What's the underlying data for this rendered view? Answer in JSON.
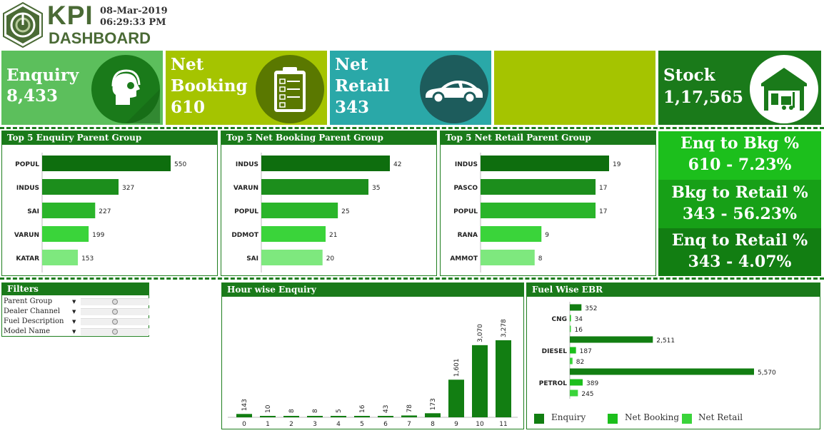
{
  "header": {
    "logo_text": "KPI",
    "logo_subtext": "DASHBOARD",
    "date": "08-Mar-2019",
    "time": "06:29:33 PM"
  },
  "tiles": [
    {
      "id": "enquiry",
      "label_lines": [
        "Enquiry"
      ],
      "value": "8,433",
      "color": "#5cbf5c",
      "icon": "headset-agent-icon"
    },
    {
      "id": "booking",
      "label_lines": [
        "Net",
        "Booking"
      ],
      "value": "610",
      "color": "#a5c400",
      "icon": "clipboard-checklist-icon"
    },
    {
      "id": "retail",
      "label_lines": [
        "Net",
        "Retail"
      ],
      "value": "343",
      "color": "#2aa8a8",
      "icon": "car-icon"
    },
    {
      "id": "blank",
      "label_lines": [],
      "value": "",
      "color": "#a5c400",
      "icon": ""
    },
    {
      "id": "stock",
      "label_lines": [
        "Stock"
      ],
      "value": "1,17,565",
      "color": "#1a7a1a",
      "icon": "warehouse-forklift-icon"
    }
  ],
  "ratios": [
    {
      "line1": "Enq to Bkg %",
      "line2": "610 - 7.23%",
      "color": "#1cbf1c"
    },
    {
      "line1": "Bkg to Retail %",
      "line2": "343 - 56.23%",
      "color": "#17a017"
    },
    {
      "line1": "Enq to Retail %",
      "line2": "343 - 4.07%",
      "color": "#127e12"
    }
  ],
  "filters": {
    "title": "Filters",
    "items": [
      "Parent Group",
      "Dealer Channel",
      "Fuel Description",
      "Model Name"
    ]
  },
  "legend": [
    "Enquiry",
    "Net Booking",
    "Net Retail"
  ],
  "chart_data": [
    {
      "type": "bar",
      "orientation": "horizontal",
      "title": "Top 5 Enquiry Parent Group",
      "categories": [
        "POPUL",
        "INDUS",
        "SAI",
        "VARUN",
        "KATAR"
      ],
      "values": [
        550,
        327,
        227,
        199,
        153
      ],
      "value_labels": [
        "550",
        "327",
        "227",
        "199",
        "153"
      ],
      "colors": [
        "#0e6e0e",
        "#1c8e1c",
        "#2ab52a",
        "#3ad43a",
        "#7ee87e"
      ]
    },
    {
      "type": "bar",
      "orientation": "horizontal",
      "title": "Top 5 Net Booking Parent Group",
      "categories": [
        "INDUS",
        "VARUN",
        "POPUL",
        "DDMOT",
        "SAI"
      ],
      "values": [
        42,
        35,
        25,
        21,
        20
      ],
      "value_labels": [
        "42",
        "35",
        "25",
        "21",
        "20"
      ],
      "colors": [
        "#0e6e0e",
        "#1c8e1c",
        "#2ab52a",
        "#3ad43a",
        "#7ee87e"
      ]
    },
    {
      "type": "bar",
      "orientation": "horizontal",
      "title": "Top 5 Net Retail Parent Group",
      "categories": [
        "INDUS",
        "PASCO",
        "POPUL",
        "RANA",
        "AMMOT"
      ],
      "values": [
        19,
        17,
        17,
        9,
        8
      ],
      "value_labels": [
        "19",
        "17",
        "17",
        "9",
        "8"
      ],
      "colors": [
        "#0e6e0e",
        "#1c8e1c",
        "#2ab52a",
        "#3ad43a",
        "#7ee87e"
      ]
    },
    {
      "type": "bar",
      "orientation": "vertical",
      "title": "Hour wise Enquiry",
      "categories": [
        "0",
        "1",
        "2",
        "3",
        "4",
        "5",
        "6",
        "7",
        "8",
        "9",
        "10",
        "11"
      ],
      "values": [
        143,
        10,
        8,
        8,
        5,
        16,
        43,
        78,
        173,
        1601,
        3070,
        3278
      ],
      "value_labels": [
        "143",
        "10",
        "8",
        "8",
        "5",
        "16",
        "43",
        "78",
        "173",
        "1,601",
        "3,070",
        "3,278"
      ],
      "color": "#127e12"
    },
    {
      "type": "bar",
      "orientation": "horizontal",
      "title": "Fuel Wise EBR",
      "categories": [
        "CNG",
        "DIESEL",
        "PETROL"
      ],
      "series": [
        {
          "name": "Enquiry",
          "values": [
            352,
            2511,
            5570
          ],
          "value_labels": [
            "352",
            "2,511",
            "5,570"
          ],
          "color": "#127e12"
        },
        {
          "name": "Net Booking",
          "values": [
            34,
            187,
            389
          ],
          "value_labels": [
            "34",
            "187",
            "389"
          ],
          "color": "#1cbf1c"
        },
        {
          "name": "Net Retail",
          "values": [
            16,
            82,
            245
          ],
          "value_labels": [
            "16",
            "82",
            "245"
          ],
          "color": "#3ad43a"
        }
      ]
    }
  ]
}
